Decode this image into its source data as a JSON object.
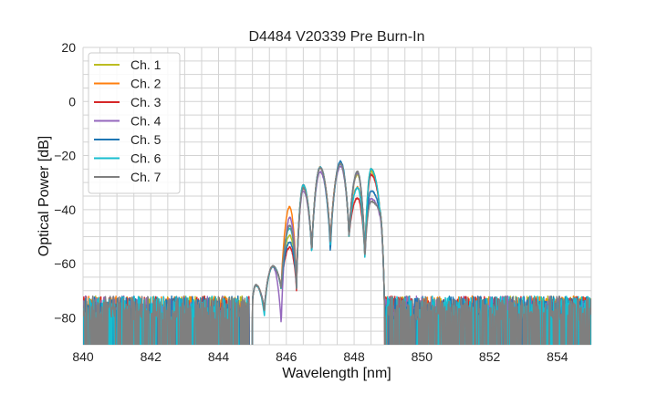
{
  "chart_data": {
    "type": "line",
    "title": "D4484 V20339 Pre Burn-In",
    "xlabel": "Wavelength [nm]",
    "ylabel": "Optical Power [dB]",
    "xlim": [
      840,
      855
    ],
    "ylim": [
      -90,
      20
    ],
    "xticks": [
      "840",
      "842",
      "844",
      "846",
      "848",
      "850",
      "852",
      "854"
    ],
    "yticks": [
      "20",
      "0",
      "−20",
      "−40",
      "−60",
      "−80"
    ],
    "grid": true,
    "legend_position": "top-left",
    "noise_floor_db": [
      -90,
      -72
    ],
    "signal_band_nm": [
      845.0,
      848.9
    ],
    "extrema_x": [
      845.0,
      845.1,
      845.35,
      845.6,
      845.85,
      846.1,
      846.3,
      846.5,
      846.75,
      847.0,
      847.3,
      847.6,
      847.85,
      848.1,
      848.32,
      848.5,
      848.75,
      848.9
    ],
    "series": [
      {
        "name": "Ch. 1",
        "color": "#bcbd22",
        "y": [
          -74,
          -68,
          -78,
          -61,
          -70,
          -49.6,
          -69,
          -31,
          -57,
          -24.5,
          -54,
          -22.8,
          -51,
          -27,
          -59,
          -26,
          -40,
          -80
        ]
      },
      {
        "name": "Ch. 2",
        "color": "#ff7f0e",
        "y": [
          -74,
          -68,
          -78,
          -61,
          -70,
          -39,
          -69,
          -31,
          -57,
          -24.3,
          -54,
          -22.7,
          -51,
          -31.7,
          -59,
          -25,
          -40,
          -80
        ]
      },
      {
        "name": "Ch. 3",
        "color": "#d62728",
        "y": [
          -74,
          -68,
          -78,
          -61,
          -70,
          -54,
          -70,
          -32,
          -57,
          -24.5,
          -54,
          -23,
          -51,
          -35.7,
          -59,
          -27,
          -40,
          -80
        ]
      },
      {
        "name": "Ch. 4",
        "color": "#9467bd",
        "y": [
          -74,
          -68,
          -78,
          -61,
          -84,
          -43,
          -69,
          -33,
          -57,
          -26,
          -54,
          -24,
          -51,
          -26.5,
          -59,
          -36,
          -42,
          -80
        ]
      },
      {
        "name": "Ch. 5",
        "color": "#1f77b4",
        "y": [
          -74,
          -68,
          -78,
          -61,
          -70,
          -52,
          -69,
          -31,
          -57,
          -24.3,
          -57,
          -22.2,
          -51,
          -26,
          -59,
          -33,
          -41,
          -80
        ]
      },
      {
        "name": "Ch. 6",
        "color": "#17becf",
        "y": [
          -74,
          -68,
          -80,
          -61,
          -70,
          -47,
          -69,
          -31,
          -58,
          -24.3,
          -55,
          -23,
          -51,
          -32,
          -60,
          -25,
          -40,
          -80
        ]
      },
      {
        "name": "Ch. 7",
        "color": "#7f7f7f",
        "y": [
          -74,
          -68,
          -78,
          -61,
          -70,
          -46,
          -69,
          -32,
          -57,
          -24.5,
          -54,
          -23,
          -51,
          -26,
          -59,
          -37,
          -41,
          -80
        ]
      }
    ]
  }
}
